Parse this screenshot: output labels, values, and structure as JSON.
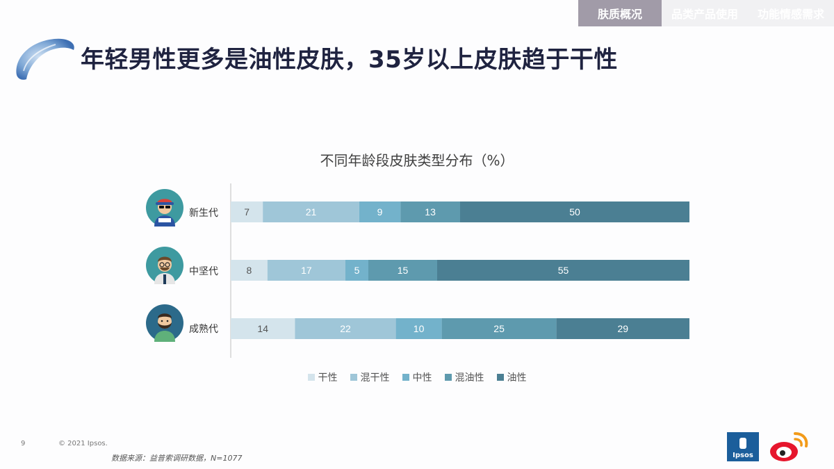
{
  "nav": {
    "tabs": [
      {
        "label": "肤质概况",
        "active": true
      },
      {
        "label": "品类产品使用",
        "active": false
      },
      {
        "label": "功能情感需求",
        "active": false
      }
    ]
  },
  "page_title": "年轻男性更多是油性皮肤，35岁以上皮肤趋于干性",
  "colors": {
    "dry": "#d4e4ec",
    "combo_dry": "#9fc6d8",
    "neutral": "#73b2cb",
    "combo_oily": "#5e9aae",
    "oily": "#4b7f93",
    "nav_active": "#a19ba8",
    "title": "#1f2340"
  },
  "chart_data": {
    "type": "bar",
    "orientation": "horizontal",
    "stacked": true,
    "title": "不同年龄段皮肤类型分布（%）",
    "categories": [
      "新生代",
      "中坚代",
      "成熟代"
    ],
    "series": [
      {
        "name": "干性",
        "values": [
          7,
          8,
          14
        ]
      },
      {
        "name": "混干性",
        "values": [
          21,
          17,
          22
        ]
      },
      {
        "name": "中性",
        "values": [
          9,
          5,
          10
        ]
      },
      {
        "name": "混油性",
        "values": [
          13,
          15,
          25
        ]
      },
      {
        "name": "油性",
        "values": [
          50,
          55,
          29
        ]
      }
    ],
    "xlim": [
      0,
      100
    ],
    "legend_position": "bottom",
    "grid": false
  },
  "avatars": [
    "young-man-cap-sunglasses-icon",
    "man-glasses-beard-icon",
    "man-full-beard-icon"
  ],
  "footer": {
    "page_number": "9",
    "copyright": "© 2021 Ipsos.",
    "source": "数据来源：益普索调研数据，N=1077"
  },
  "logos": {
    "ipsos": "Ipsos"
  }
}
